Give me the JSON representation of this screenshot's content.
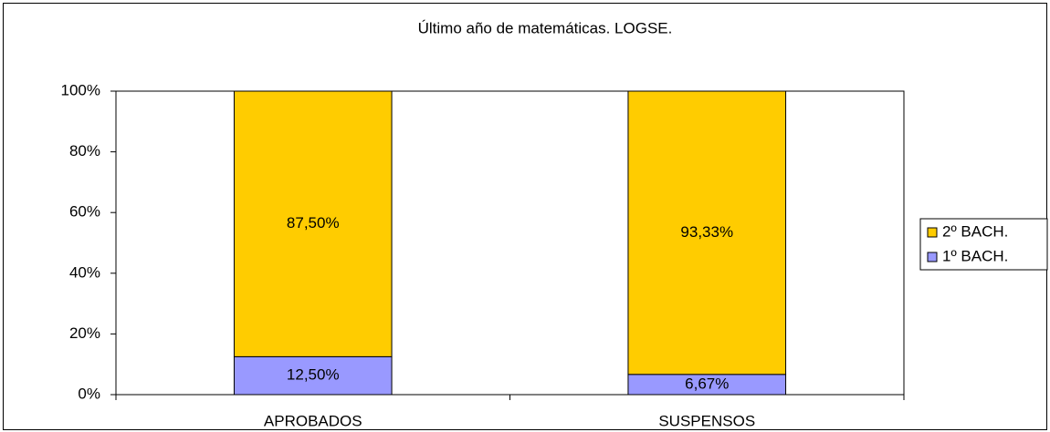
{
  "chart_data": {
    "type": "stacked_bar",
    "title": "Último año de matemáticas. LOGSE.",
    "categories": [
      "APROBADOS",
      "SUSPENSOS"
    ],
    "series": [
      {
        "name": "1º BACH.",
        "color": "#9999ff",
        "values": [
          12.5,
          6.67
        ],
        "value_labels": [
          "12,50%",
          "6,67%"
        ]
      },
      {
        "name": "2º BACH.",
        "color": "#ffcc00",
        "values": [
          87.5,
          93.33
        ],
        "value_labels": [
          "87,50%",
          "93,33%"
        ]
      }
    ],
    "ylim": [
      0,
      100
    ],
    "yticks": [
      {
        "value": 0,
        "label": "0%"
      },
      {
        "value": 20,
        "label": "20%"
      },
      {
        "value": 40,
        "label": "40%"
      },
      {
        "value": 60,
        "label": "60%"
      },
      {
        "value": 80,
        "label": "80%"
      },
      {
        "value": 100,
        "label": "100%"
      }
    ],
    "legend": "right"
  }
}
